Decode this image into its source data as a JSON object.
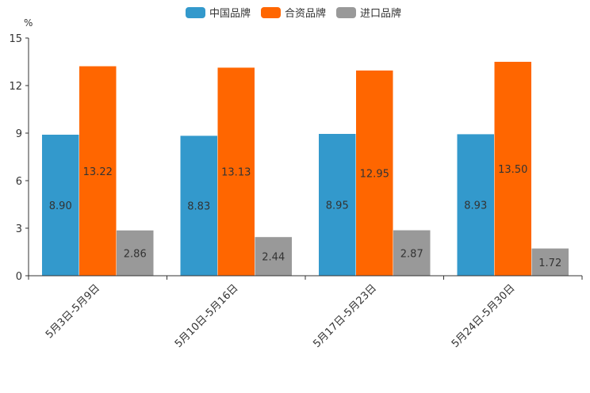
{
  "chart_data": {
    "type": "bar",
    "unit": "%",
    "categories": [
      "5月3日-5月9日",
      "5月10日-5月16日",
      "5月17日-5月23日",
      "5月24日-5月30日"
    ],
    "series": [
      {
        "name": "中国品牌",
        "color": "#3399cc",
        "values": [
          8.9,
          8.83,
          8.95,
          8.93
        ],
        "labels": [
          "8.90",
          "8.83",
          "8.95",
          "8.93"
        ]
      },
      {
        "name": "合资品牌",
        "color": "#ff6600",
        "values": [
          13.22,
          13.13,
          12.95,
          13.5
        ],
        "labels": [
          "13.22",
          "13.13",
          "12.95",
          "13.50"
        ]
      },
      {
        "name": "进口品牌",
        "color": "#999999",
        "values": [
          2.86,
          2.44,
          2.87,
          1.72
        ],
        "labels": [
          "2.86",
          "2.44",
          "2.87",
          "1.72"
        ]
      }
    ],
    "ylim": [
      0,
      15
    ],
    "yticks": [
      0,
      3,
      6,
      9,
      12,
      15
    ],
    "legend_position": "top-center",
    "grid": false
  }
}
